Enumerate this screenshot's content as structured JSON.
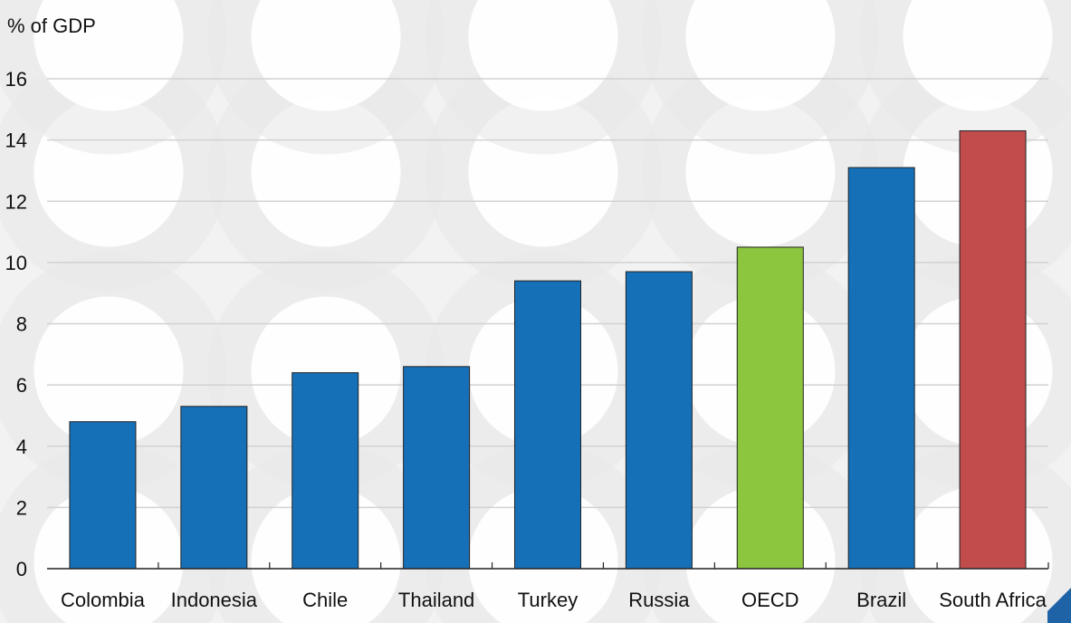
{
  "colors": {
    "blue": "#1670b8",
    "green": "#8cc63f",
    "red": "#c14c4c",
    "gridline": "#d2d2d2",
    "axis": "#222222",
    "background": "#f2f2f2"
  },
  "chart_data": {
    "type": "bar",
    "title": "",
    "xlabel": "",
    "ylabel": "% of GDP",
    "ylim": [
      0,
      16
    ],
    "yticks": [
      0,
      2,
      4,
      6,
      8,
      10,
      12,
      14,
      16
    ],
    "grid": true,
    "categories": [
      "Colombia",
      "Indonesia",
      "Chile",
      "Thailand",
      "Turkey",
      "Russia",
      "OECD",
      "Brazil",
      "South Africa"
    ],
    "values": [
      4.8,
      5.3,
      6.4,
      6.6,
      9.4,
      9.7,
      10.5,
      13.1,
      14.3
    ],
    "bar_colors": [
      "#1670b8",
      "#1670b8",
      "#1670b8",
      "#1670b8",
      "#1670b8",
      "#1670b8",
      "#8cc63f",
      "#1670b8",
      "#c14c4c"
    ]
  }
}
